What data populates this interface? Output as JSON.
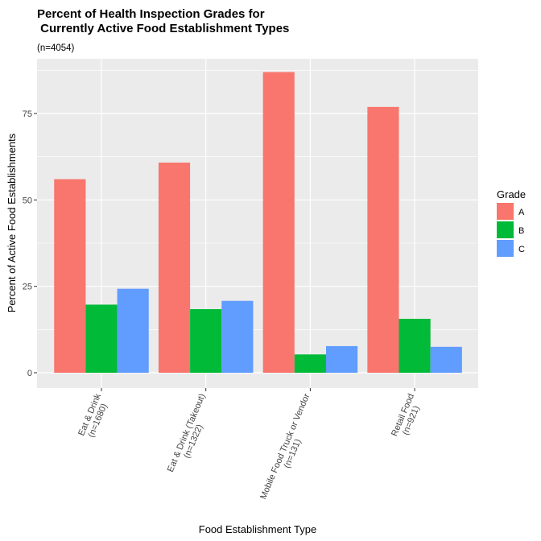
{
  "chart_data": {
    "type": "bar",
    "title_line1": "Percent of Health Inspection Grades for",
    "title_line2": " Currently Active Food Establishment Types",
    "subtitle": "(n=4054)",
    "xlabel": "Food Establishment Type",
    "ylabel": "Percent of Active Food Establishments",
    "ylim": [
      0,
      90
    ],
    "yticks": [
      0,
      25,
      50,
      75
    ],
    "grid": true,
    "legend_position": "right",
    "legend_title": "Grade",
    "categories": [
      {
        "line1": "Eat & Drink",
        "line2": "(n=1680)"
      },
      {
        "line1": "Eat & Drink (Takeout)",
        "line2": "(n=1322)"
      },
      {
        "line1": "Mobile Food Truck or Vendor",
        "line2": "(n=131)"
      },
      {
        "line1": "Retail Food",
        "line2": "(n=921)"
      }
    ],
    "series": [
      {
        "name": "A",
        "color": "#F8766D",
        "values": [
          56.0,
          60.8,
          87.0,
          76.9
        ]
      },
      {
        "name": "B",
        "color": "#00BA38",
        "values": [
          19.7,
          18.4,
          5.3,
          15.6
        ]
      },
      {
        "name": "C",
        "color": "#619CFF",
        "values": [
          24.3,
          20.8,
          7.7,
          7.5
        ]
      }
    ]
  }
}
